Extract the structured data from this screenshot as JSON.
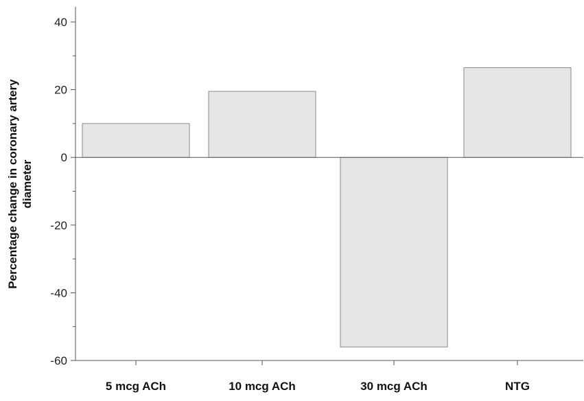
{
  "chart_data": {
    "type": "bar",
    "categories": [
      "5 mcg ACh",
      "10 mcg ACh",
      "30 mcg ACh",
      "NTG"
    ],
    "values": [
      10,
      19.5,
      -56,
      26.5
    ],
    "title": "",
    "xlabel": "",
    "ylabel_lines": [
      "Percentage change in coronary artery",
      "diameter"
    ],
    "ylim": [
      -60,
      44
    ],
    "yticks": [
      40,
      20,
      0,
      -20,
      -40,
      -60
    ],
    "ytick_labels": [
      "40",
      "20",
      "0",
      "-20",
      "-40",
      "-60"
    ],
    "grid": false,
    "legend": "none",
    "bar_color": "#e6e6e6",
    "bar_edge_color": "#8a8a8a"
  }
}
